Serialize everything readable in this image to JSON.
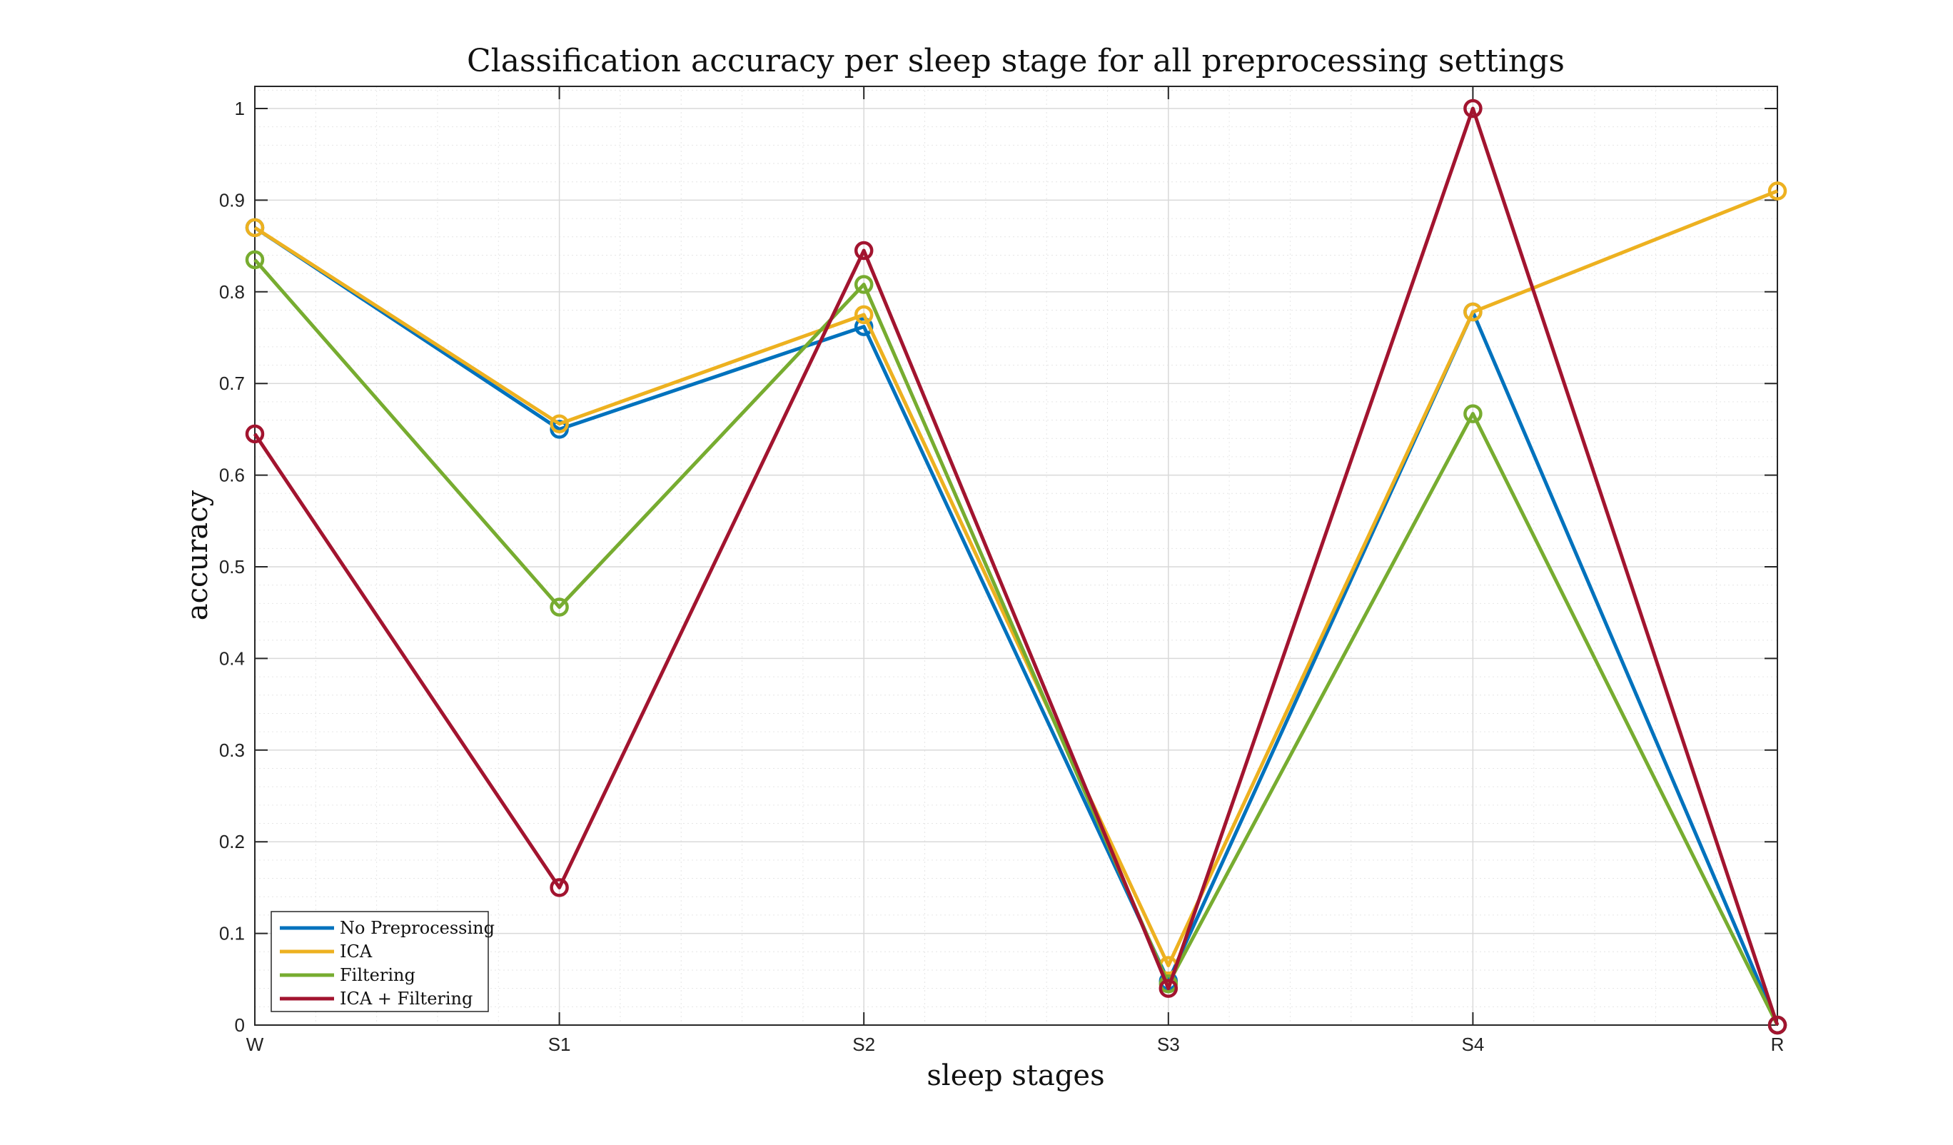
{
  "chart_data": {
    "type": "line",
    "title": "Classification accuracy per sleep stage for all preprocessing settings",
    "xlabel": "sleep stages",
    "ylabel": "accuracy",
    "categories": [
      "W",
      "S1",
      "S2",
      "S3",
      "S4",
      "R"
    ],
    "ylim": [
      0,
      1.025
    ],
    "yticks": [
      0,
      0.1,
      0.2,
      0.3,
      0.4,
      0.5,
      0.6,
      0.7,
      0.8,
      0.9,
      1
    ],
    "ytick_labels": [
      "0",
      "0.1",
      "0.2",
      "0.3",
      "0.4",
      "0.5",
      "0.6",
      "0.7",
      "0.8",
      "0.9",
      "1"
    ],
    "grid": true,
    "minor_grid": true,
    "marker": "circle",
    "legend_position": "bottom-left",
    "series": [
      {
        "name": "No Preprocessing",
        "color": "#0072BD",
        "values": [
          0.87,
          0.65,
          0.762,
          0.048,
          0.778,
          0
        ]
      },
      {
        "name": "ICA",
        "color": "#EDB120",
        "values": [
          0.87,
          0.656,
          0.775,
          0.065,
          0.778,
          0.91
        ]
      },
      {
        "name": "Filtering",
        "color": "#77AC30",
        "values": [
          0.835,
          0.456,
          0.808,
          0.045,
          0.667,
          0
        ]
      },
      {
        "name": "ICA + Filtering",
        "color": "#A2142F",
        "values": [
          0.645,
          0.15,
          0.845,
          0.04,
          1.0,
          0
        ]
      }
    ]
  }
}
